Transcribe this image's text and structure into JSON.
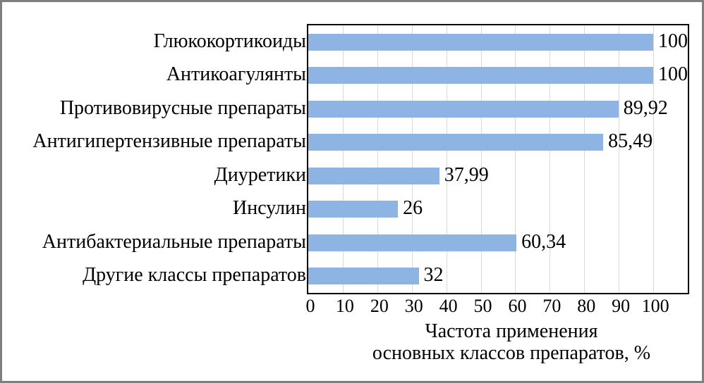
{
  "chart_data": {
    "type": "bar",
    "orientation": "horizontal",
    "categories": [
      "Глюкокортикоиды",
      "Антикоагулянты",
      "Противовирусные препараты",
      "Антигипертензивные препараты",
      "Диуретики",
      "Инсулин",
      "Антибактериальные препараты",
      "Другие классы препаратов"
    ],
    "values": [
      100,
      100,
      89.92,
      85.49,
      37.99,
      26,
      60.34,
      32
    ],
    "value_labels": [
      "100",
      "100",
      "89,92",
      "85,49",
      "37,99",
      "26",
      "60,34",
      "32"
    ],
    "x_ticks": [
      "0",
      "10",
      "20",
      "30",
      "40",
      "50",
      "60",
      "70",
      "80",
      "90",
      "100"
    ],
    "x_tick_values": [
      0,
      10,
      20,
      30,
      40,
      50,
      60,
      70,
      80,
      90,
      100
    ],
    "xlim": [
      0,
      110
    ],
    "xlabel_lines": [
      "Частота применения",
      "основных классов препаратов, %"
    ],
    "grid": "vertical-major",
    "legend_position": "none",
    "colors": {
      "bar": "#8DB4E2",
      "gridline": "#D9D9D9",
      "plot_border": "#000000",
      "figure_border": "#7F7F7F",
      "text": "#000000",
      "background": "#FFFFFF"
    }
  }
}
